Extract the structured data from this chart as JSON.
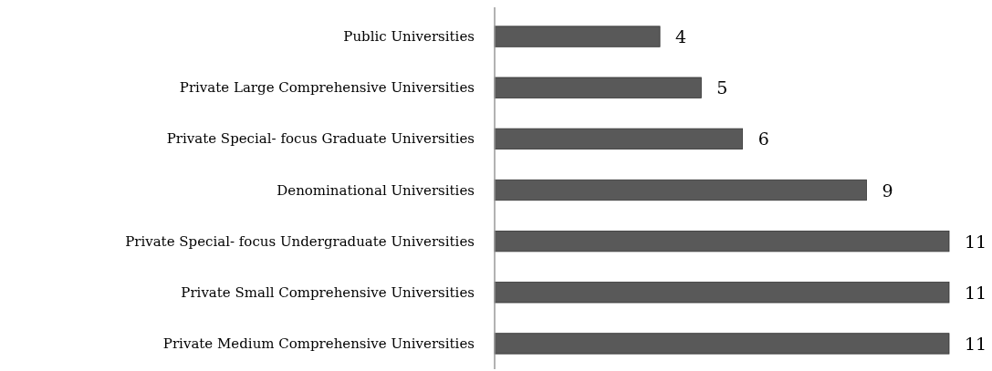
{
  "chart_data": {
    "type": "bar",
    "orientation": "horizontal",
    "categories": [
      "Public Universities",
      "Private Large Comprehensive Universities",
      "Private Special- focus Graduate Universities",
      "Denominational Universities",
      "Private Special- focus Undergraduate Universities",
      "Private Small Comprehensive Universities",
      "Private Medium Comprehensive Universities"
    ],
    "values": [
      4,
      5,
      6,
      9,
      11,
      11,
      11
    ],
    "color": "#595959",
    "xlim": [
      0,
      11
    ],
    "tick_labels": "y",
    "data_labels": true
  }
}
